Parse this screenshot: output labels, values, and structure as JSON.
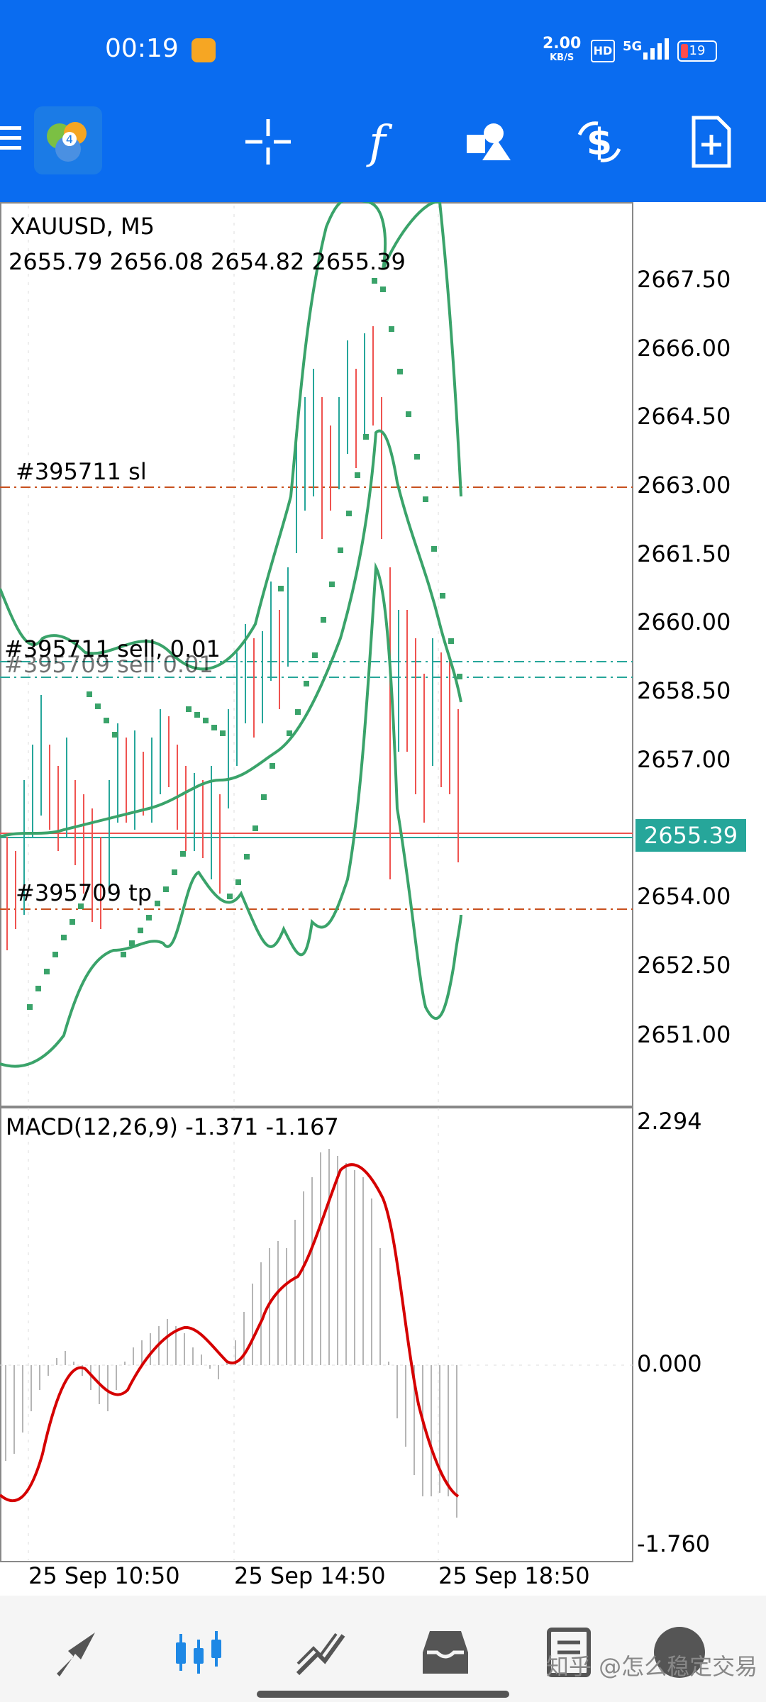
{
  "status_bar": {
    "time": "00:19",
    "net_speed": "2.00",
    "net_unit": "KB/S",
    "hd": "HD",
    "network": "5G",
    "battery": "19"
  },
  "toolbar": {
    "icons": [
      "menu-icon",
      "mt4-logo-icon",
      "crosshair-icon",
      "indicator-f-icon",
      "objects-icon",
      "trade-dollar-icon",
      "new-order-icon"
    ]
  },
  "chart": {
    "symbol": "XAUUSD, M5",
    "ohlc": "2655.79 2656.08 2654.82 2655.39",
    "current_price": "2655.39",
    "price_axis": [
      "2667.50",
      "2666.00",
      "2664.50",
      "2663.00",
      "2661.50",
      "2660.00",
      "2658.50",
      "2657.00",
      "2654.00",
      "2652.50",
      "2651.00"
    ],
    "orders": {
      "sl": "#395711 sl",
      "sell": "#395711 sell, 0.01",
      "sell2": "#395709 sell 0.01",
      "tp": "#395709 tp"
    },
    "macd_label": "MACD(12,26,9) -1.371 -1.167",
    "macd_axis": [
      "2.294",
      "0.000",
      "-1.760"
    ],
    "time_axis": [
      "25 Sep 10:50",
      "25 Sep 14:50",
      "25 Sep 18:50"
    ],
    "colors": {
      "up": "#26a69a",
      "down": "#ef5350",
      "band": "#3aa36a",
      "macd_signal": "#d50000",
      "order_line": "#c8501e"
    }
  },
  "bottom_nav": {
    "icons": [
      "quotes-icon",
      "chart-icon",
      "trade-icon",
      "history-icon",
      "news-icon",
      "settings-avatar-icon"
    ]
  },
  "watermark": "知乎 @怎么稳定交易"
}
